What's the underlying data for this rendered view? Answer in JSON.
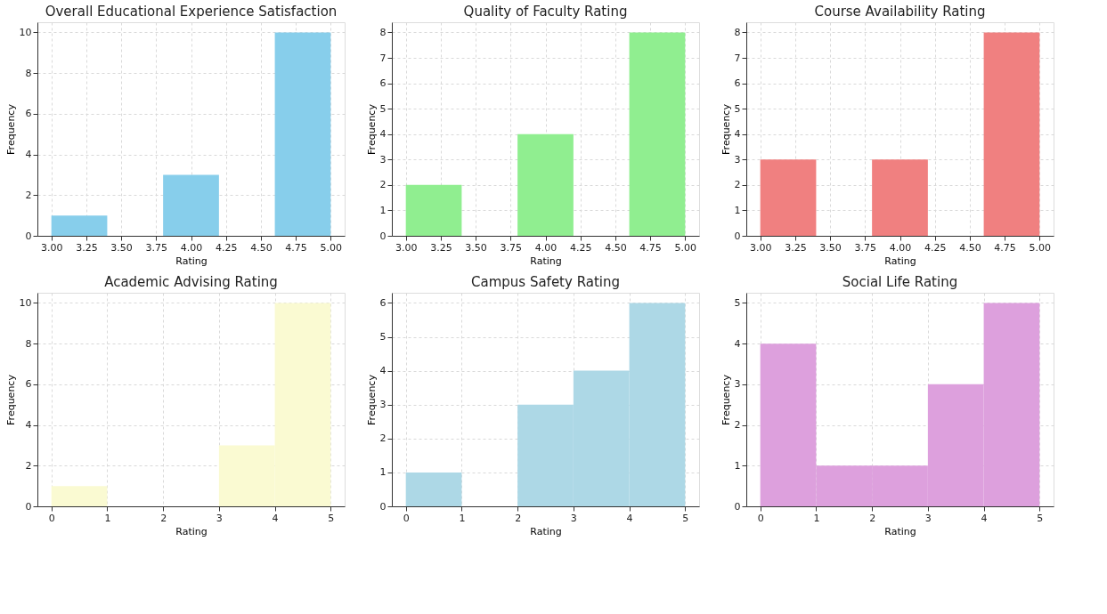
{
  "chart_data": [
    {
      "type": "histogram",
      "title": "Overall Educational Experience Satisfaction",
      "xlabel": "Rating",
      "ylabel": "Frequency",
      "bins": [
        3.0,
        3.4,
        3.8,
        4.2,
        4.6,
        5.0
      ],
      "values": [
        1,
        0,
        3,
        0,
        10
      ],
      "color": "#87ceeb",
      "xlim": [
        2.9,
        5.1
      ],
      "xticks": [
        {
          "value": 3,
          "label": "3.00"
        },
        {
          "value": 3.25,
          "label": "3.25"
        },
        {
          "value": 3.5,
          "label": "3.50"
        },
        {
          "value": 3.75,
          "label": "3.75"
        },
        {
          "value": 4,
          "label": "4.00"
        },
        {
          "value": 4.25,
          "label": "4.25"
        },
        {
          "value": 4.5,
          "label": "4.50"
        },
        {
          "value": 4.75,
          "label": "4.75"
        },
        {
          "value": 5,
          "label": "5.00"
        }
      ],
      "ylim": [
        0,
        10.5
      ],
      "yticks": [
        0,
        2,
        4,
        6,
        8,
        10
      ],
      "grid": true
    },
    {
      "type": "histogram",
      "title": "Quality of Faculty Rating",
      "xlabel": "Rating",
      "ylabel": "Frequency",
      "bins": [
        3.0,
        3.4,
        3.8,
        4.2,
        4.6,
        5.0
      ],
      "values": [
        2,
        0,
        4,
        0,
        8
      ],
      "color": "#90ee90",
      "xlim": [
        2.9,
        5.1
      ],
      "xticks": [
        {
          "value": 3,
          "label": "3.00"
        },
        {
          "value": 3.25,
          "label": "3.25"
        },
        {
          "value": 3.5,
          "label": "3.50"
        },
        {
          "value": 3.75,
          "label": "3.75"
        },
        {
          "value": 4,
          "label": "4.00"
        },
        {
          "value": 4.25,
          "label": "4.25"
        },
        {
          "value": 4.5,
          "label": "4.50"
        },
        {
          "value": 4.75,
          "label": "4.75"
        },
        {
          "value": 5,
          "label": "5.00"
        }
      ],
      "ylim": [
        0,
        8.4
      ],
      "yticks": [
        0,
        1,
        2,
        3,
        4,
        5,
        6,
        7,
        8
      ],
      "grid": true
    },
    {
      "type": "histogram",
      "title": "Course Availability Rating",
      "xlabel": "Rating",
      "ylabel": "Frequency",
      "bins": [
        3.0,
        3.4,
        3.8,
        4.2,
        4.6,
        5.0
      ],
      "values": [
        3,
        0,
        3,
        0,
        8
      ],
      "color": "#f08080",
      "xlim": [
        2.9,
        5.1
      ],
      "xticks": [
        {
          "value": 3,
          "label": "3.00"
        },
        {
          "value": 3.25,
          "label": "3.25"
        },
        {
          "value": 3.5,
          "label": "3.50"
        },
        {
          "value": 3.75,
          "label": "3.75"
        },
        {
          "value": 4,
          "label": "4.00"
        },
        {
          "value": 4.25,
          "label": "4.25"
        },
        {
          "value": 4.5,
          "label": "4.50"
        },
        {
          "value": 4.75,
          "label": "4.75"
        },
        {
          "value": 5,
          "label": "5.00"
        }
      ],
      "ylim": [
        0,
        8.4
      ],
      "yticks": [
        0,
        1,
        2,
        3,
        4,
        5,
        6,
        7,
        8
      ],
      "grid": true
    },
    {
      "type": "histogram",
      "title": "Academic Advising Rating",
      "xlabel": "Rating",
      "ylabel": "Frequency",
      "bins": [
        0,
        1,
        2,
        3,
        4,
        5
      ],
      "values": [
        1,
        0,
        0,
        3,
        10
      ],
      "color": "#fafad2",
      "xlim": [
        -0.25,
        5.25
      ],
      "xticks": [
        0,
        1,
        2,
        3,
        4,
        5
      ],
      "ylim": [
        0,
        10.5
      ],
      "yticks": [
        0,
        2,
        4,
        6,
        8,
        10
      ],
      "grid": true
    },
    {
      "type": "histogram",
      "title": "Campus Safety Rating",
      "xlabel": "Rating",
      "ylabel": "Frequency",
      "bins": [
        0,
        1,
        2,
        3,
        4,
        5
      ],
      "values": [
        1,
        0,
        3,
        4,
        6
      ],
      "color": "#add8e6",
      "xlim": [
        -0.25,
        5.25
      ],
      "xticks": [
        0,
        1,
        2,
        3,
        4,
        5
      ],
      "ylim": [
        0,
        6.3
      ],
      "yticks": [
        0,
        1,
        2,
        3,
        4,
        5,
        6
      ],
      "grid": true
    },
    {
      "type": "histogram",
      "title": "Social Life Rating",
      "xlabel": "Rating",
      "ylabel": "Frequency",
      "bins": [
        0,
        1,
        2,
        3,
        4,
        5
      ],
      "values": [
        4,
        1,
        1,
        3,
        5
      ],
      "color": "#dda0dd",
      "xlim": [
        -0.25,
        5.25
      ],
      "xticks": [
        0,
        1,
        2,
        3,
        4,
        5
      ],
      "ylim": [
        0,
        5.25
      ],
      "yticks": [
        0,
        1,
        2,
        3,
        4,
        5
      ],
      "grid": true
    }
  ]
}
